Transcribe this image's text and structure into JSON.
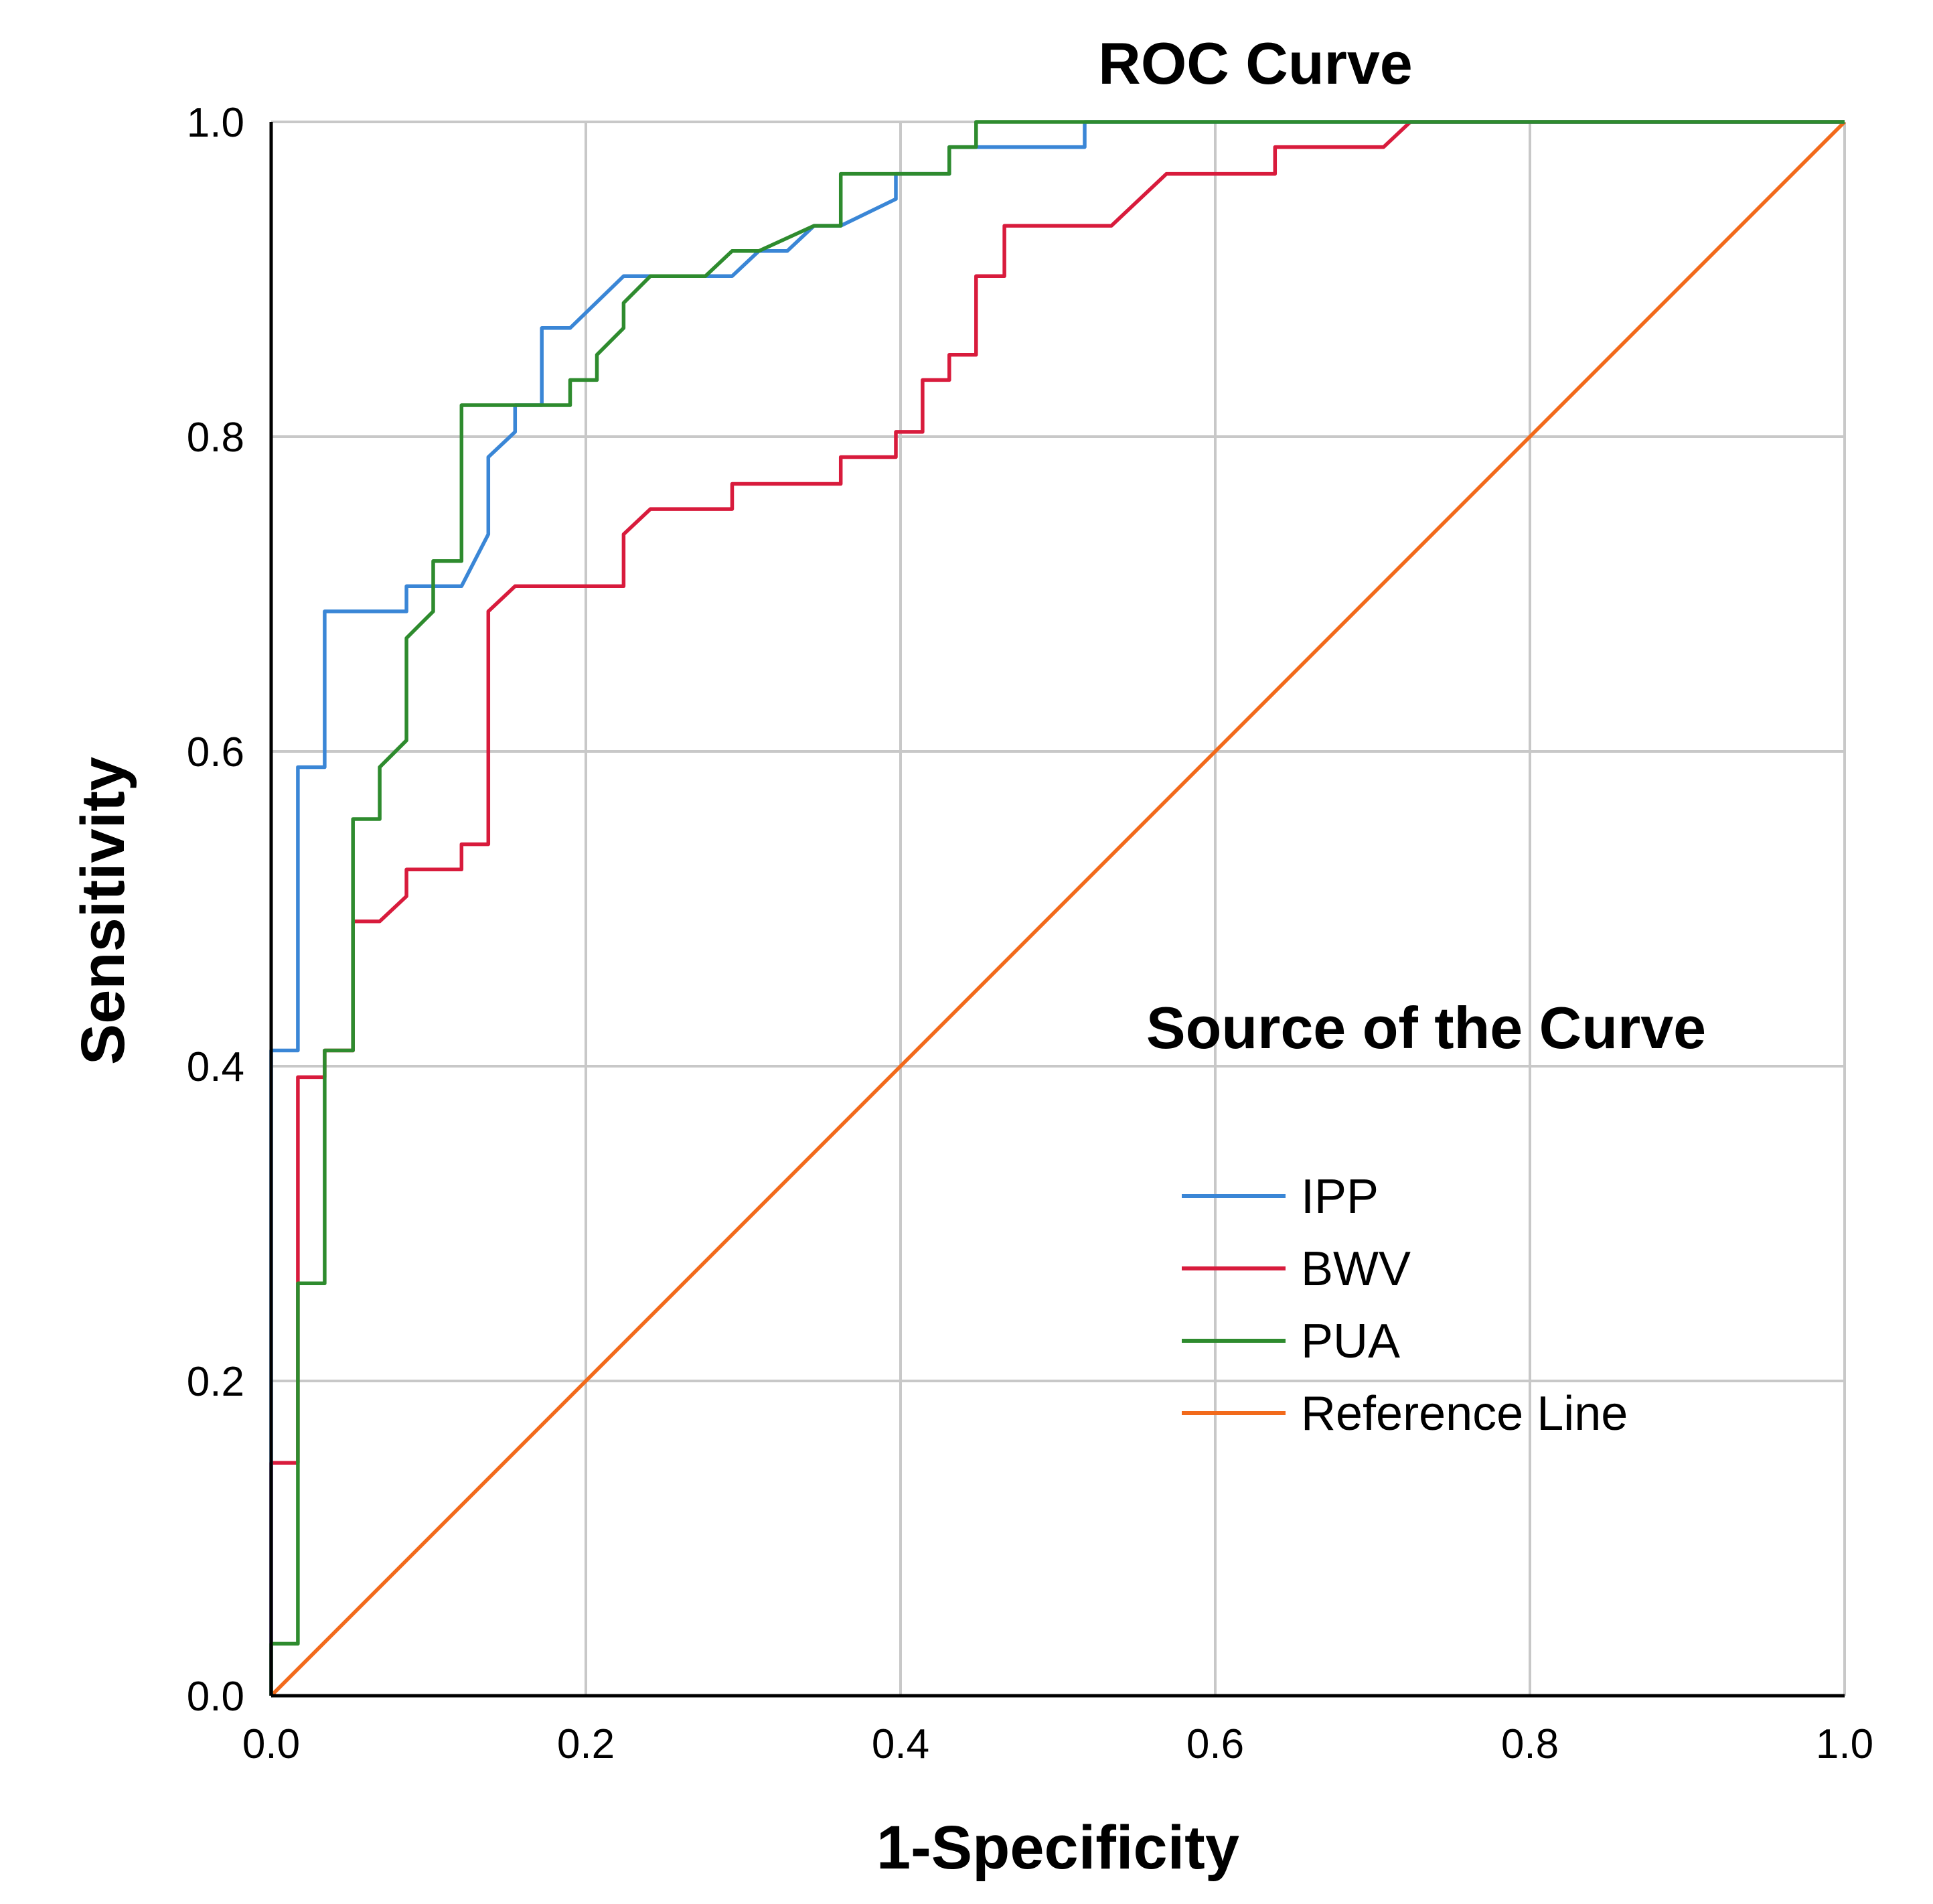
{
  "chart_data": {
    "type": "line",
    "title": "ROC Curve",
    "xlabel": "1-Specificity",
    "ylabel": "Sensitivity",
    "xlim": [
      0.0,
      1.0
    ],
    "ylim": [
      0.0,
      1.0
    ],
    "x_ticks": [
      "0.0",
      "0.2",
      "0.4",
      "0.6",
      "0.8",
      "1.0"
    ],
    "y_ticks": [
      "0.0",
      "0.2",
      "0.4",
      "0.6",
      "0.8",
      "1.0"
    ],
    "grid": true,
    "legend": {
      "title": "Source of the Curve",
      "position": "lower-right"
    },
    "series": [
      {
        "name": "IPP",
        "color": "#3a86d6",
        "points": [
          [
            0,
            0
          ],
          [
            0,
            0.41
          ],
          [
            0.017,
            0.41
          ],
          [
            0.017,
            0.59
          ],
          [
            0.034,
            0.59
          ],
          [
            0.034,
            0.689
          ],
          [
            0.086,
            0.689
          ],
          [
            0.086,
            0.705
          ],
          [
            0.121,
            0.705
          ],
          [
            0.138,
            0.738
          ],
          [
            0.138,
            0.787
          ],
          [
            0.155,
            0.803
          ],
          [
            0.155,
            0.82
          ],
          [
            0.172,
            0.82
          ],
          [
            0.172,
            0.869
          ],
          [
            0.19,
            0.869
          ],
          [
            0.224,
            0.902
          ],
          [
            0.293,
            0.902
          ],
          [
            0.31,
            0.918
          ],
          [
            0.328,
            0.918
          ],
          [
            0.345,
            0.934
          ],
          [
            0.362,
            0.934
          ],
          [
            0.397,
            0.951
          ],
          [
            0.397,
            0.967
          ],
          [
            0.431,
            0.967
          ],
          [
            0.431,
            0.984
          ],
          [
            0.517,
            0.984
          ],
          [
            0.517,
            1.0
          ],
          [
            1.0,
            1.0
          ]
        ]
      },
      {
        "name": "BWV",
        "color": "#d81b3c",
        "points": [
          [
            0,
            0
          ],
          [
            0,
            0.148
          ],
          [
            0.017,
            0.148
          ],
          [
            0.017,
            0.393
          ],
          [
            0.034,
            0.393
          ],
          [
            0.034,
            0.41
          ],
          [
            0.052,
            0.41
          ],
          [
            0.052,
            0.492
          ],
          [
            0.069,
            0.492
          ],
          [
            0.086,
            0.508
          ],
          [
            0.086,
            0.525
          ],
          [
            0.121,
            0.525
          ],
          [
            0.121,
            0.541
          ],
          [
            0.138,
            0.541
          ],
          [
            0.138,
            0.689
          ],
          [
            0.155,
            0.705
          ],
          [
            0.224,
            0.705
          ],
          [
            0.224,
            0.738
          ],
          [
            0.241,
            0.754
          ],
          [
            0.293,
            0.754
          ],
          [
            0.293,
            0.77
          ],
          [
            0.362,
            0.77
          ],
          [
            0.362,
            0.787
          ],
          [
            0.397,
            0.787
          ],
          [
            0.397,
            0.803
          ],
          [
            0.414,
            0.803
          ],
          [
            0.414,
            0.836
          ],
          [
            0.431,
            0.836
          ],
          [
            0.431,
            0.852
          ],
          [
            0.448,
            0.852
          ],
          [
            0.448,
            0.902
          ],
          [
            0.466,
            0.902
          ],
          [
            0.466,
            0.934
          ],
          [
            0.534,
            0.934
          ],
          [
            0.569,
            0.967
          ],
          [
            0.638,
            0.967
          ],
          [
            0.638,
            0.984
          ],
          [
            0.707,
            0.984
          ],
          [
            0.724,
            1.0
          ],
          [
            1.0,
            1.0
          ]
        ]
      },
      {
        "name": "PUA",
        "color": "#2e8b2e",
        "points": [
          [
            0,
            0
          ],
          [
            0,
            0.033
          ],
          [
            0.017,
            0.033
          ],
          [
            0.017,
            0.262
          ],
          [
            0.034,
            0.262
          ],
          [
            0.034,
            0.41
          ],
          [
            0.052,
            0.41
          ],
          [
            0.052,
            0.557
          ],
          [
            0.069,
            0.557
          ],
          [
            0.069,
            0.59
          ],
          [
            0.086,
            0.607
          ],
          [
            0.086,
            0.672
          ],
          [
            0.103,
            0.689
          ],
          [
            0.103,
            0.721
          ],
          [
            0.121,
            0.721
          ],
          [
            0.121,
            0.82
          ],
          [
            0.19,
            0.82
          ],
          [
            0.19,
            0.836
          ],
          [
            0.207,
            0.836
          ],
          [
            0.207,
            0.852
          ],
          [
            0.224,
            0.869
          ],
          [
            0.224,
            0.885
          ],
          [
            0.241,
            0.902
          ],
          [
            0.276,
            0.902
          ],
          [
            0.293,
            0.918
          ],
          [
            0.31,
            0.918
          ],
          [
            0.345,
            0.934
          ],
          [
            0.362,
            0.934
          ],
          [
            0.362,
            0.967
          ],
          [
            0.431,
            0.967
          ],
          [
            0.431,
            0.984
          ],
          [
            0.448,
            0.984
          ],
          [
            0.448,
            1.0
          ],
          [
            1.0,
            1.0
          ]
        ]
      },
      {
        "name": "Reference Line",
        "color": "#f26a1b",
        "points": [
          [
            0,
            0
          ],
          [
            1.0,
            1.0
          ]
        ]
      }
    ]
  }
}
